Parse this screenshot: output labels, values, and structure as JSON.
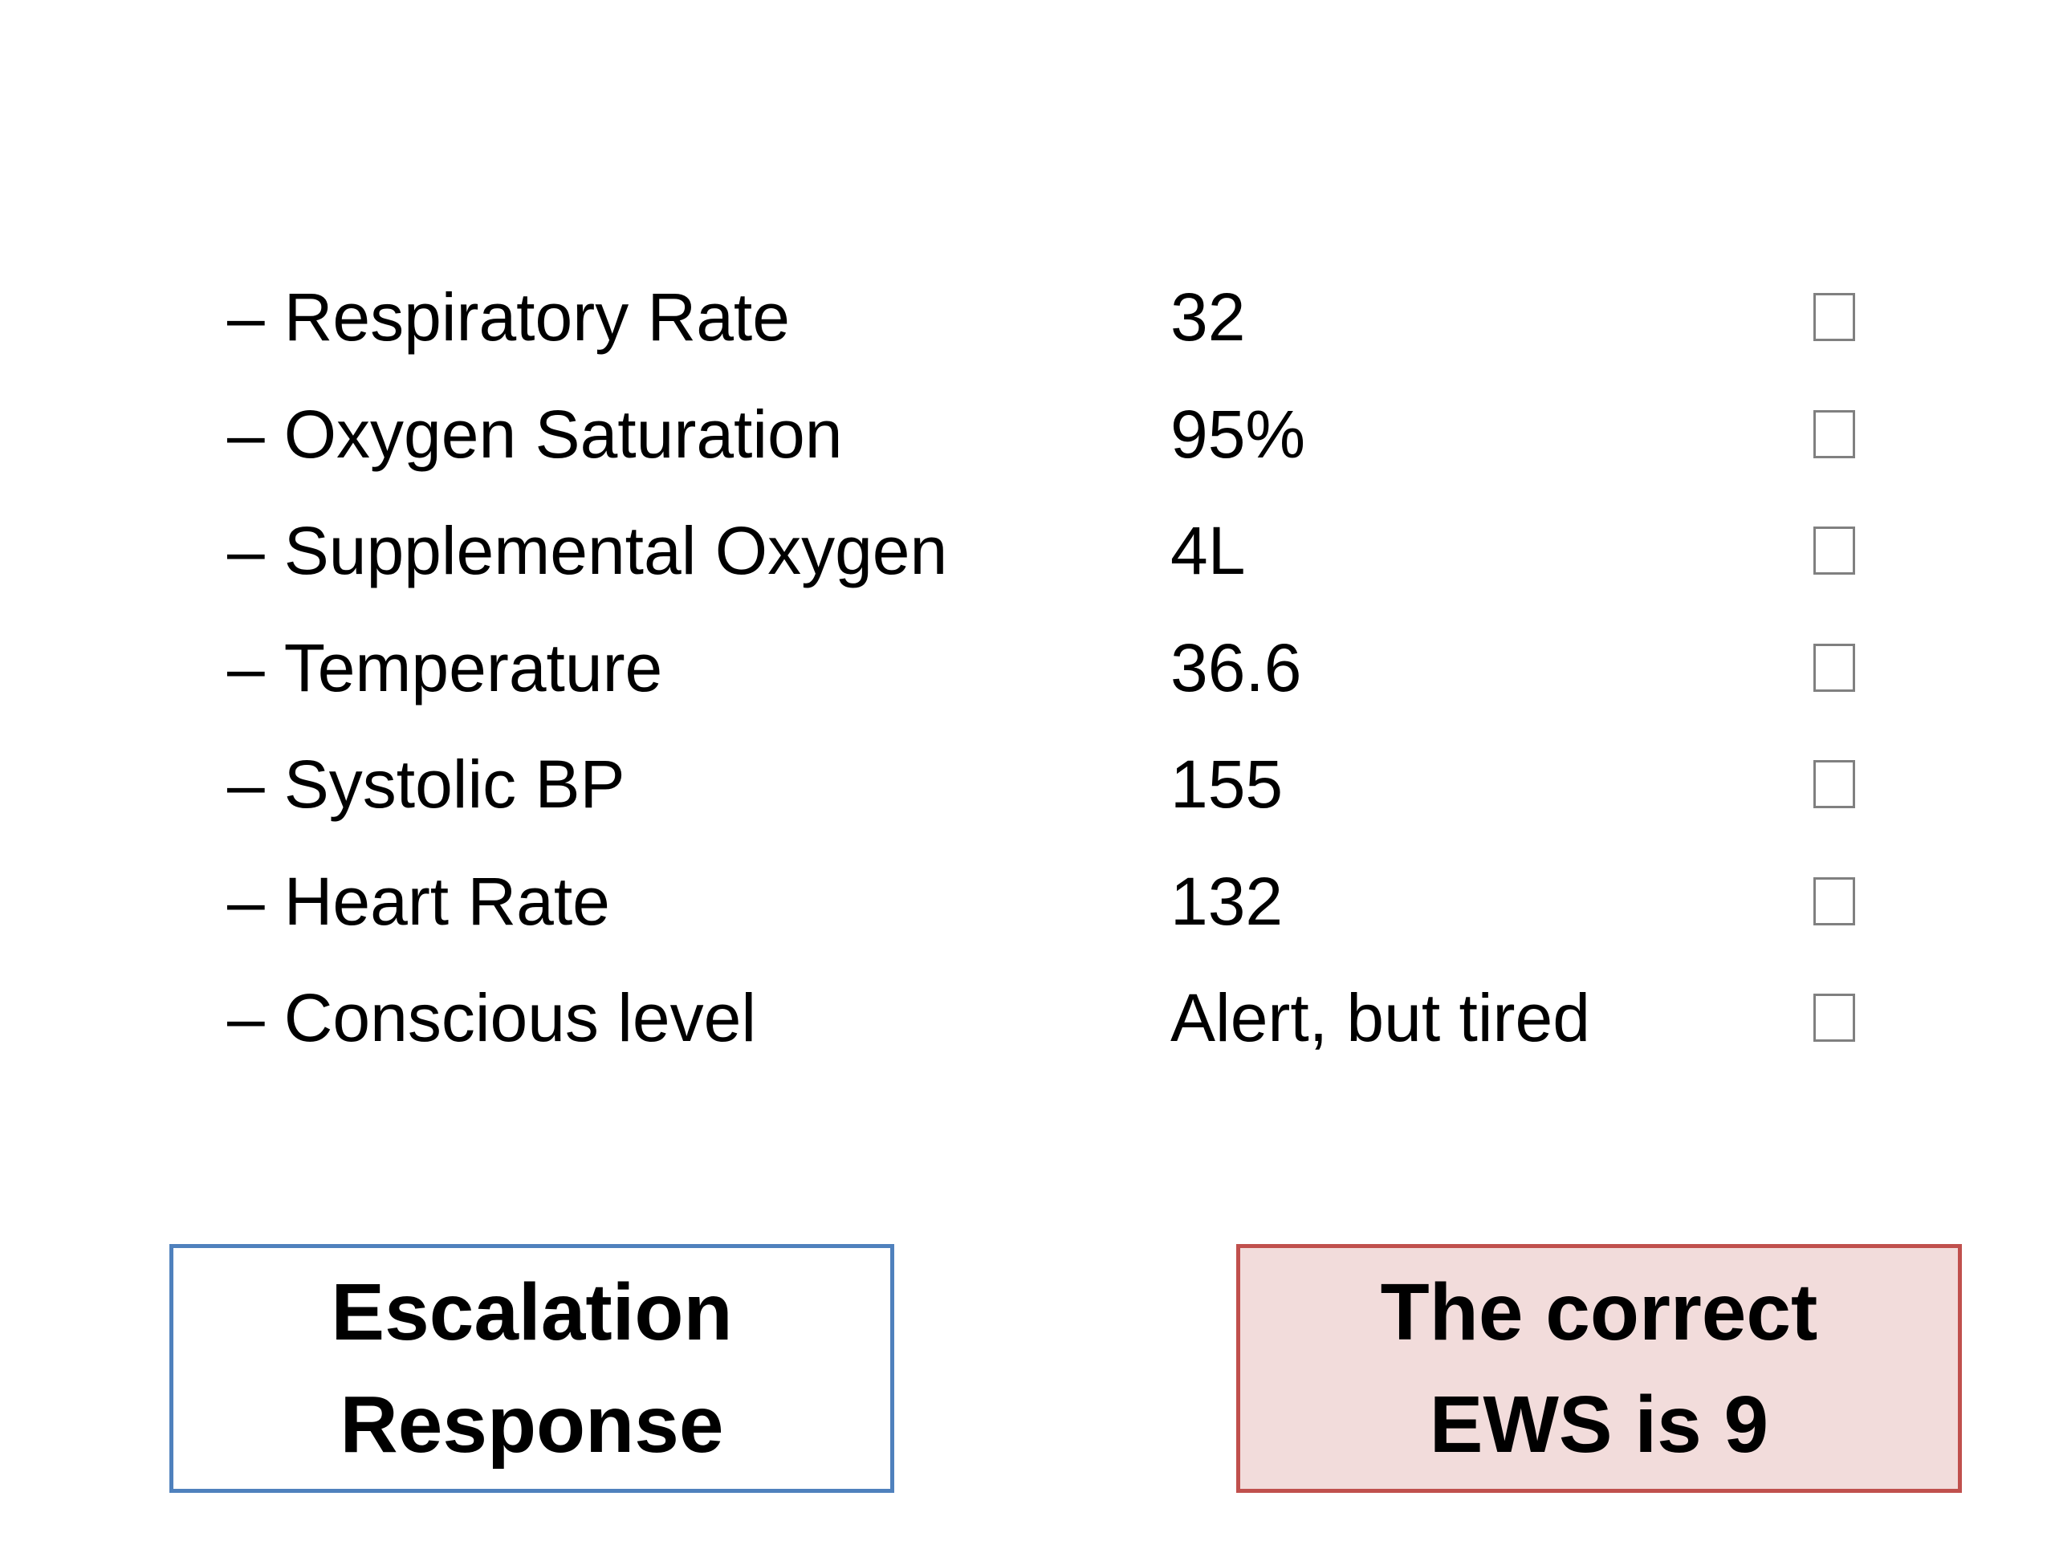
{
  "vitals": [
    {
      "dash": "–",
      "label": "Respiratory Rate",
      "value": "32"
    },
    {
      "dash": "–",
      "label": "Oxygen Saturation",
      "value": "95%"
    },
    {
      "dash": "–",
      "label": "Supplemental Oxygen",
      "value": "4L"
    },
    {
      "dash": "–",
      "label": "Temperature",
      "value": "36.6"
    },
    {
      "dash": "–",
      "label": "Systolic BP",
      "value": "155"
    },
    {
      "dash": "–",
      "label": "Heart Rate",
      "value": "132"
    },
    {
      "dash": "–",
      "label": "Conscious level",
      "value": "Alert, but tired"
    }
  ],
  "buttons": {
    "escalation": {
      "line1": "Escalation",
      "line2": "Response",
      "border_color": "#4f81bd",
      "fill_color": "#ffffff"
    },
    "ews": {
      "line1": "The correct",
      "line2": "EWS is 9",
      "border_color": "#c0504d",
      "fill_color": "#f2dcdb"
    }
  }
}
